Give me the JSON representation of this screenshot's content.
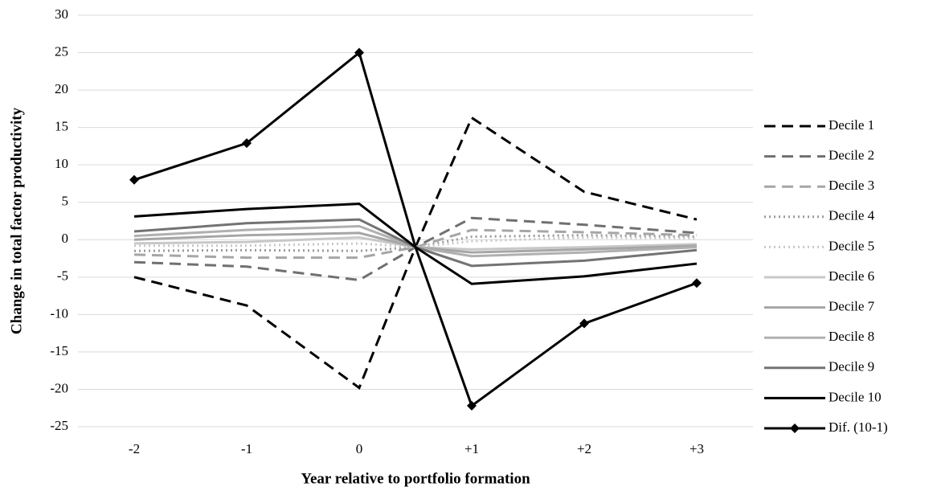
{
  "chart_data": {
    "type": "line",
    "x_label": "Year relative to portfolio formation",
    "y_label": "Change in total factor productivity",
    "x": [
      -2,
      -1,
      0,
      0.5,
      1,
      2,
      3
    ],
    "xlim": [
      -2.5,
      3.5
    ],
    "xticks": [
      -2,
      -1,
      0,
      {
        "value": 1,
        "label": "+1"
      },
      {
        "value": 2,
        "label": "+2"
      },
      {
        "value": 3,
        "label": "+3"
      }
    ],
    "ylim": [
      -25,
      30
    ],
    "yticks": [
      -25,
      -20,
      -15,
      -10,
      -5,
      0,
      5,
      10,
      15,
      20,
      25,
      30
    ],
    "grid": true,
    "legend": "right",
    "series": [
      {
        "name": "Decile 1",
        "color": "#000000",
        "dash": "dashed",
        "values": [
          -5,
          -8.8,
          -19.8,
          -1,
          16.3,
          6.4,
          2.7
        ]
      },
      {
        "name": "Decile 2",
        "color": "#707070",
        "dash": "dashed",
        "values": [
          -3,
          -3.6,
          -5.4,
          -1,
          2.9,
          2.0,
          0.9
        ]
      },
      {
        "name": "Decile 3",
        "color": "#a6a6a6",
        "dash": "dashed",
        "values": [
          -2,
          -2.4,
          -2.4,
          -1,
          1.3,
          1.0,
          0.6
        ]
      },
      {
        "name": "Decile 4",
        "color": "#9a9a9a",
        "dash": "dotted",
        "values": [
          -1.5,
          -1.4,
          -1.5,
          -1,
          0.4,
          0.6,
          0.4
        ]
      },
      {
        "name": "Decile 5",
        "color": "#c8c8c8",
        "dash": "dotted",
        "values": [
          -0.8,
          -0.8,
          -0.5,
          -1,
          -0.2,
          0.3,
          0.2
        ]
      },
      {
        "name": "Decile 6",
        "color": "#c8c8c8",
        "dash": "solid",
        "values": [
          -0.5,
          -0.3,
          0.3,
          -1,
          -1.3,
          -1.0,
          -0.6
        ]
      },
      {
        "name": "Decile 7",
        "color": "#a6a6a6",
        "dash": "solid",
        "values": [
          0,
          0.6,
          0.9,
          -1,
          -1.7,
          -1.3,
          -0.8
        ]
      },
      {
        "name": "Decile 8",
        "color": "#b0b0b0",
        "dash": "solid",
        "values": [
          0.5,
          1.3,
          1.8,
          -1,
          -2.2,
          -1.7,
          -1.0
        ]
      },
      {
        "name": "Decile 9",
        "color": "#737373",
        "dash": "solid",
        "values": [
          1.1,
          2.2,
          2.7,
          -1,
          -3.5,
          -2.8,
          -1.4
        ]
      },
      {
        "name": "Decile 10",
        "color": "#000000",
        "dash": "solid",
        "values": [
          3.1,
          4.1,
          4.8,
          -1,
          -5.9,
          -4.9,
          -3.2
        ]
      },
      {
        "name": "Dif. (10-1)",
        "color": "#000000",
        "dash": "solid",
        "marker": "diamond",
        "values": [
          8,
          12.9,
          25,
          -1,
          -22.2,
          -11.2,
          -5.8
        ]
      }
    ]
  }
}
